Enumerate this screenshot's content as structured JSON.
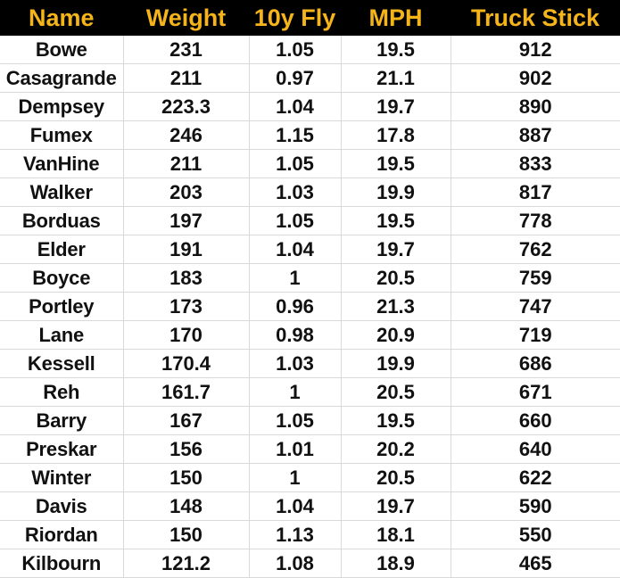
{
  "sheet": {
    "colors": {
      "header_bg": "#000000",
      "header_text": "#f4b41a",
      "cell_text": "#111111",
      "gridline": "#d9d9d9"
    },
    "headers": [
      "Name",
      "Weight",
      "10y Fly",
      "MPH",
      "Truck Stick"
    ],
    "rows": [
      [
        "Bowe",
        "231",
        "1.05",
        "19.5",
        "912"
      ],
      [
        "Casagrande",
        "211",
        "0.97",
        "21.1",
        "902"
      ],
      [
        "Dempsey",
        "223.3",
        "1.04",
        "19.7",
        "890"
      ],
      [
        "Fumex",
        "246",
        "1.15",
        "17.8",
        "887"
      ],
      [
        "VanHine",
        "211",
        "1.05",
        "19.5",
        "833"
      ],
      [
        "Walker",
        "203",
        "1.03",
        "19.9",
        "817"
      ],
      [
        "Borduas",
        "197",
        "1.05",
        "19.5",
        "778"
      ],
      [
        "Elder",
        "191",
        "1.04",
        "19.7",
        "762"
      ],
      [
        "Boyce",
        "183",
        "1",
        "20.5",
        "759"
      ],
      [
        "Portley",
        "173",
        "0.96",
        "21.3",
        "747"
      ],
      [
        "Lane",
        "170",
        "0.98",
        "20.9",
        "719"
      ],
      [
        "Kessell",
        "170.4",
        "1.03",
        "19.9",
        "686"
      ],
      [
        "Reh",
        "161.7",
        "1",
        "20.5",
        "671"
      ],
      [
        "Barry",
        "167",
        "1.05",
        "19.5",
        "660"
      ],
      [
        "Preskar",
        "156",
        "1.01",
        "20.2",
        "640"
      ],
      [
        "Winter",
        "150",
        "1",
        "20.5",
        "622"
      ],
      [
        "Davis",
        "148",
        "1.04",
        "19.7",
        "590"
      ],
      [
        "Riordan",
        "150",
        "1.13",
        "18.1",
        "550"
      ],
      [
        "Kilbourn",
        "121.2",
        "1.08",
        "18.9",
        "465"
      ]
    ]
  }
}
